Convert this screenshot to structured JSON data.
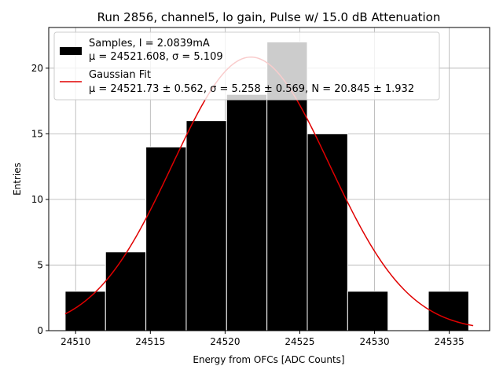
{
  "chart_data": {
    "type": "bar",
    "title": "Run 2856, channel5, lo gain, Pulse w/ 15.0 dB Attenuation",
    "xlabel": "Energy from OFCs [ADC Counts]",
    "ylabel": "Entries",
    "xlim": [
      24508.2,
      24537.7
    ],
    "ylim": [
      0,
      23.1
    ],
    "xticks": [
      24510,
      24515,
      24520,
      24525,
      24530,
      24535
    ],
    "yticks": [
      0,
      5,
      10,
      15,
      20
    ],
    "grid": true,
    "legend_position": "top-left",
    "bins": [
      {
        "x0": 24509.3,
        "x1": 24512.0,
        "count": 3
      },
      {
        "x0": 24512.0,
        "x1": 24514.7,
        "count": 6
      },
      {
        "x0": 24514.7,
        "x1": 24517.4,
        "count": 14
      },
      {
        "x0": 24517.4,
        "x1": 24520.1,
        "count": 16
      },
      {
        "x0": 24520.1,
        "x1": 24522.8,
        "count": 18
      },
      {
        "x0": 24522.8,
        "x1": 24525.5,
        "count": 22
      },
      {
        "x0": 24525.5,
        "x1": 24528.2,
        "count": 15
      },
      {
        "x0": 24528.2,
        "x1": 24530.9,
        "count": 3
      },
      {
        "x0": 24530.9,
        "x1": 24533.6,
        "count": 0
      },
      {
        "x0": 24533.6,
        "x1": 24536.3,
        "count": 3
      }
    ],
    "fit": {
      "mu": 24521.73,
      "sigma": 5.258,
      "N": 20.845,
      "x_range": [
        24509.3,
        24536.6
      ]
    },
    "legend": {
      "samples_line1": "Samples, I = 2.0839mA",
      "samples_line2": "μ = 24521.608, σ = 5.109",
      "fit_line1": "Gaussian Fit",
      "fit_line2": "μ = 24521.73 ± 0.562, σ = 5.258 ± 0.569, N = 20.845 ± 1.932"
    },
    "colors": {
      "bars": "#000000",
      "bar_edge": "#ffffff",
      "fit": "#e00000",
      "grid": "#b0b0b0",
      "legend_frame": "#cccccc"
    }
  }
}
